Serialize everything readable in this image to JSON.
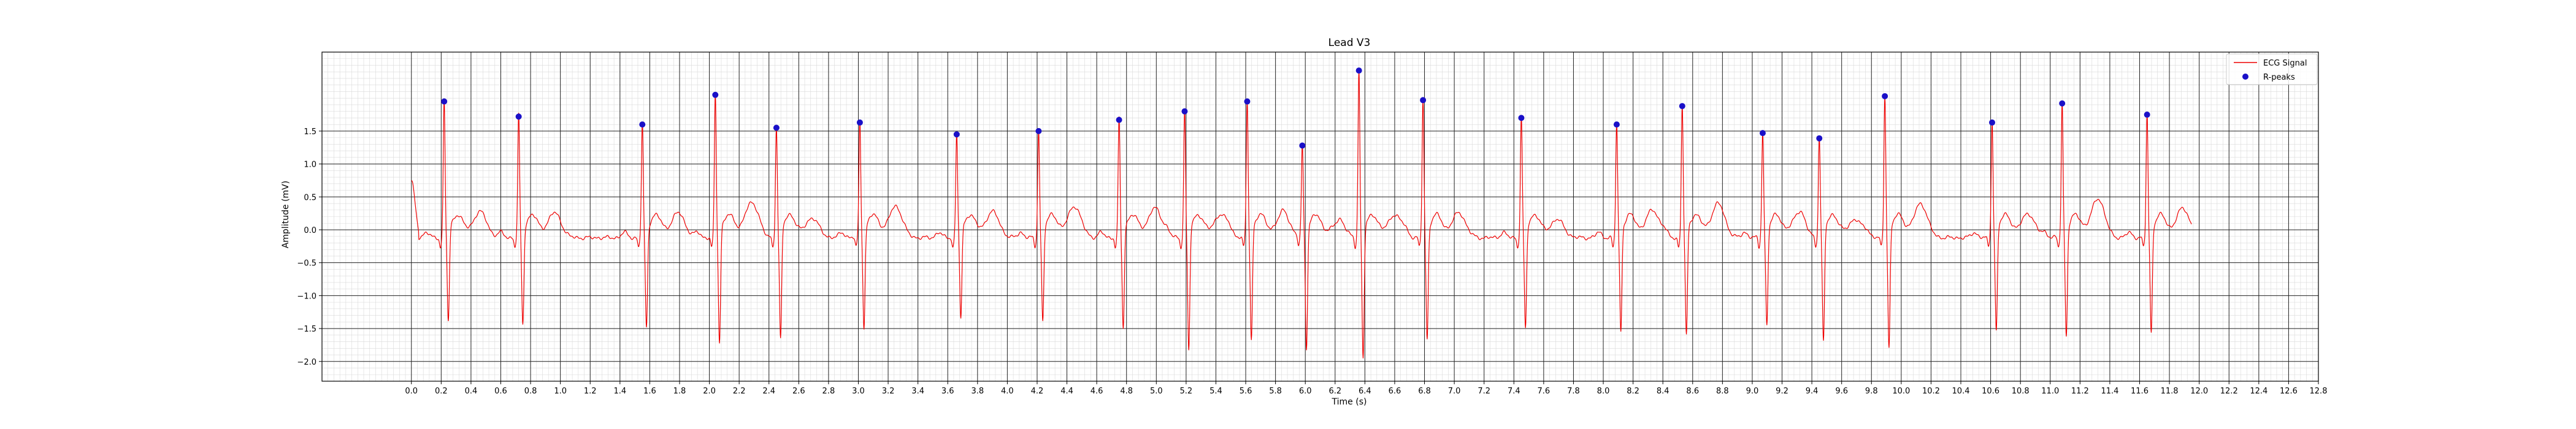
{
  "chart_data": {
    "type": "line",
    "title": "Lead V3",
    "xlabel": "Time (s)",
    "ylabel": "Amplitude (mV)",
    "xlim": [
      -0.6,
      12.8
    ],
    "ylim": [
      -2.3,
      2.7
    ],
    "xticks": [
      0.0,
      0.2,
      0.4,
      0.6,
      0.8,
      1.0,
      1.2,
      1.4,
      1.6,
      1.8,
      2.0,
      2.2,
      2.4,
      2.6,
      2.8,
      3.0,
      3.2,
      3.4,
      3.6,
      3.8,
      4.0,
      4.2,
      4.4,
      4.6,
      4.8,
      5.0,
      5.2,
      5.4,
      5.6,
      5.8,
      6.0,
      6.2,
      6.4,
      6.6,
      6.8,
      7.0,
      7.2,
      7.4,
      7.6,
      7.8,
      8.0,
      8.2,
      8.4,
      8.6,
      8.8,
      9.0,
      9.2,
      9.4,
      9.6,
      9.8,
      10.0,
      10.2,
      10.4,
      10.6,
      10.8,
      11.0,
      11.2,
      11.4,
      11.6,
      11.8,
      12.0,
      12.2,
      12.4,
      12.6,
      12.8
    ],
    "xtick_labels": [
      "0.0",
      "0.2",
      "0.4",
      "0.6",
      "0.8",
      "1.0",
      "1.2",
      "1.4",
      "1.6",
      "1.8",
      "2.0",
      "2.2",
      "2.4",
      "2.6",
      "2.8",
      "3.0",
      "3.2",
      "3.4",
      "3.6",
      "3.8",
      "4.0",
      "4.2",
      "4.4",
      "4.6",
      "4.8",
      "5.0",
      "5.2",
      "5.4",
      "5.6",
      "5.8",
      "6.0",
      "6.2",
      "6.4",
      "6.6",
      "6.8",
      "7.0",
      "7.2",
      "7.4",
      "7.6",
      "7.8",
      "8.0",
      "8.2",
      "8.4",
      "8.6",
      "8.8",
      "9.0",
      "9.2",
      "9.4",
      "9.6",
      "9.8",
      "10.0",
      "10.2",
      "10.4",
      "10.6",
      "10.8",
      "11.0",
      "11.2",
      "11.4",
      "11.6",
      "11.8",
      "12.0",
      "12.2",
      "12.4",
      "12.6",
      "12.8"
    ],
    "yticks": [
      -2.0,
      -1.5,
      -1.0,
      -0.5,
      0.0,
      0.5,
      1.0,
      1.5
    ],
    "ytick_labels": [
      "−2.0",
      "−1.5",
      "−1.0",
      "−0.5",
      "0.0",
      "0.5",
      "1.0",
      "1.5"
    ],
    "grid": true,
    "legend_position": "top-right",
    "series": [
      {
        "name": "ECG Signal",
        "color": "#ee0000",
        "baseline": -0.12,
        "x_start": 0.0,
        "x_end": 11.95,
        "beats": [
          {
            "t": 0.22,
            "r": 1.95,
            "s": -1.5,
            "tw": 0.6
          },
          {
            "t": 0.72,
            "r": 1.72,
            "s": -1.55,
            "tw": 0.58
          },
          {
            "t": 1.55,
            "r": 1.6,
            "s": -1.6,
            "tw": 0.58
          },
          {
            "t": 2.04,
            "r": 2.05,
            "s": -1.82,
            "tw": 0.72
          },
          {
            "t": 2.45,
            "r": 1.55,
            "s": -1.78,
            "tw": 0.5
          },
          {
            "t": 3.01,
            "r": 1.63,
            "s": -1.6,
            "tw": 0.68
          },
          {
            "t": 3.66,
            "r": 1.45,
            "s": -1.45,
            "tw": 0.6
          },
          {
            "t": 4.21,
            "r": 1.5,
            "s": -1.5,
            "tw": 0.68
          },
          {
            "t": 4.75,
            "r": 1.67,
            "s": -1.6,
            "tw": 0.65
          },
          {
            "t": 5.19,
            "r": 1.8,
            "s": -1.95,
            "tw": 0.55
          },
          {
            "t": 5.61,
            "r": 1.95,
            "s": -1.78,
            "tw": 0.55
          },
          {
            "t": 5.98,
            "r": 1.28,
            "s": -1.9,
            "tw": 0.42
          },
          {
            "t": 6.36,
            "r": 2.42,
            "s": -2.05,
            "tw": 0.55
          },
          {
            "t": 6.79,
            "r": 1.97,
            "s": -1.77,
            "tw": 0.58
          },
          {
            "t": 7.45,
            "r": 1.7,
            "s": -1.62,
            "tw": 0.48
          },
          {
            "t": 8.09,
            "r": 1.6,
            "s": -1.65,
            "tw": 0.62
          },
          {
            "t": 8.53,
            "r": 1.88,
            "s": -1.72,
            "tw": 0.72
          },
          {
            "t": 9.07,
            "r": 1.47,
            "s": -1.55,
            "tw": 0.55
          },
          {
            "t": 9.45,
            "r": 1.39,
            "s": -1.82,
            "tw": 0.48
          },
          {
            "t": 9.89,
            "r": 2.03,
            "s": -1.9,
            "tw": 0.72
          },
          {
            "t": 10.61,
            "r": 1.63,
            "s": -1.65,
            "tw": 0.57
          },
          {
            "t": 11.08,
            "r": 1.92,
            "s": -1.72,
            "tw": 0.8
          },
          {
            "t": 11.65,
            "r": 1.75,
            "s": -1.68,
            "tw": 0.65
          }
        ]
      },
      {
        "name": "R-peaks",
        "type": "scatter",
        "color": "#1a10c8",
        "x": [
          0.22,
          0.72,
          1.55,
          2.04,
          2.45,
          3.01,
          3.66,
          4.21,
          4.75,
          5.19,
          5.61,
          5.98,
          6.36,
          6.79,
          7.45,
          8.09,
          8.53,
          9.07,
          9.45,
          9.89,
          10.61,
          11.08,
          11.65
        ],
        "y": [
          1.95,
          1.72,
          1.6,
          2.05,
          1.55,
          1.63,
          1.45,
          1.5,
          1.67,
          1.8,
          1.95,
          1.28,
          2.42,
          1.97,
          1.7,
          1.6,
          1.88,
          1.47,
          1.39,
          2.03,
          1.63,
          1.92,
          1.75
        ]
      }
    ]
  }
}
